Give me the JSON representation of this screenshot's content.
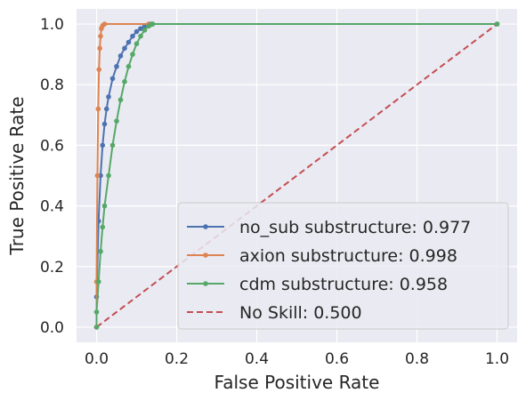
{
  "chart_data": {
    "type": "line",
    "title": "",
    "xlabel": "False Positive Rate",
    "ylabel": "True Positive Rate",
    "xlim": [
      -0.05,
      1.05
    ],
    "ylim": [
      -0.05,
      1.05
    ],
    "xticks": [
      "0.0",
      "0.2",
      "0.4",
      "0.6",
      "0.8",
      "1.0"
    ],
    "yticks": [
      "0.0",
      "0.2",
      "0.4",
      "0.6",
      "0.8",
      "1.0"
    ],
    "grid": true,
    "legend_position": "lower-right",
    "series": [
      {
        "name": "no_sub substructure: 0.977",
        "color": "#4c72b0",
        "marker": "dot",
        "dash": "solid",
        "x": [
          0.0,
          0.0,
          0.005,
          0.01,
          0.015,
          0.02,
          0.025,
          0.03,
          0.04,
          0.05,
          0.06,
          0.07,
          0.08,
          0.09,
          0.1,
          0.11,
          0.12,
          0.13,
          0.135,
          0.14,
          1.0
        ],
        "y": [
          0.0,
          0.1,
          0.35,
          0.5,
          0.6,
          0.67,
          0.72,
          0.76,
          0.82,
          0.86,
          0.895,
          0.92,
          0.94,
          0.96,
          0.975,
          0.985,
          0.992,
          0.998,
          1.0,
          1.0,
          1.0
        ]
      },
      {
        "name": "axion substructure: 0.998",
        "color": "#dd8452",
        "marker": "dot",
        "dash": "solid",
        "x": [
          0.0,
          0.0,
          0.002,
          0.004,
          0.006,
          0.008,
          0.01,
          0.012,
          0.015,
          0.02,
          0.13,
          1.0
        ],
        "y": [
          0.0,
          0.15,
          0.5,
          0.72,
          0.85,
          0.92,
          0.96,
          0.985,
          0.995,
          1.0,
          1.0,
          1.0
        ]
      },
      {
        "name": "cdm substructure: 0.958",
        "color": "#55a868",
        "marker": "dot",
        "dash": "solid",
        "x": [
          0.0,
          0.0,
          0.005,
          0.01,
          0.015,
          0.02,
          0.03,
          0.04,
          0.05,
          0.06,
          0.07,
          0.08,
          0.09,
          0.1,
          0.11,
          0.12,
          0.13,
          0.135,
          0.14,
          1.0
        ],
        "y": [
          0.0,
          0.05,
          0.15,
          0.25,
          0.33,
          0.4,
          0.5,
          0.6,
          0.68,
          0.75,
          0.81,
          0.86,
          0.9,
          0.935,
          0.96,
          0.98,
          0.993,
          0.998,
          1.0,
          1.0
        ]
      },
      {
        "name": "No Skill: 0.500",
        "color": "#c44e52",
        "marker": "none",
        "dash": "dashed",
        "x": [
          0.0,
          1.0
        ],
        "y": [
          0.0,
          1.0
        ]
      }
    ]
  }
}
